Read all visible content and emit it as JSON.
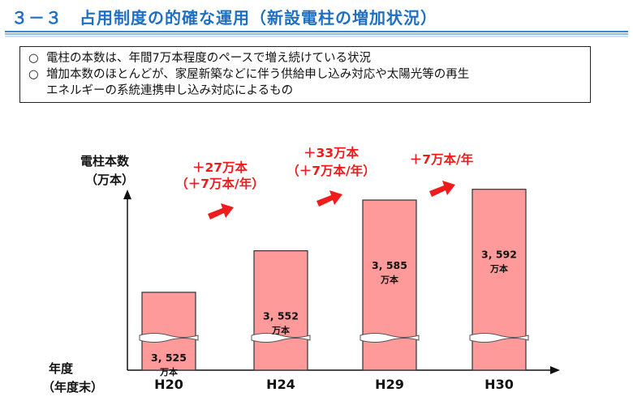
{
  "header": {
    "title": "３－３　占用制度の的確な運用（新設電柱の増加状況）"
  },
  "summary": {
    "bullet": "○",
    "items": [
      "電柱の本数は、年間7万本程度のペースで増え続けている状況",
      "増加本数のほとんどが、家屋新築などに伴う供給申し込み対応や太陽光等の再生\nエネルギーの系統連携申し込み対応によるもの"
    ]
  },
  "chart_data": {
    "type": "bar",
    "ylabel": "電柱本数",
    "yunit": "（万本）",
    "xlabel": "年度",
    "xunit": "（年度末）",
    "categories": [
      "H20",
      "H24",
      "H29",
      "H30"
    ],
    "values": [
      3525,
      3552,
      3585,
      3592
    ],
    "value_labels": [
      "3, 525",
      "3, 552",
      "3, 585",
      "3, 592"
    ],
    "value_unit": "万本",
    "axis_break": true,
    "grid": false,
    "bar_color": "#ff9a9a",
    "bar_edge_color": "#333333",
    "annotation_color": "#ee1c1c",
    "increments": [
      {
        "from": "H20",
        "to": "H24",
        "lines": [
          "＋27万本",
          "（＋7万本/年）"
        ]
      },
      {
        "from": "H24",
        "to": "H29",
        "lines": [
          "＋33万本",
          "（＋7万本/年）"
        ]
      },
      {
        "from": "H29",
        "to": "H30",
        "lines": [
          "＋7万本/年"
        ]
      }
    ]
  }
}
